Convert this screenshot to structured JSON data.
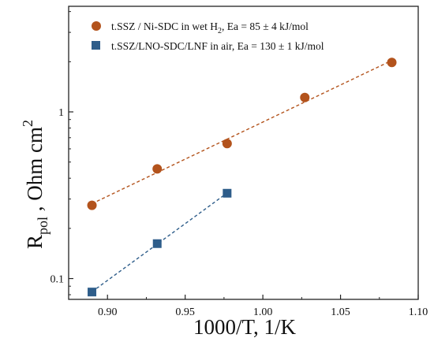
{
  "chart_data": {
    "type": "scatter",
    "x_axis": {
      "label": "1000/T, 1/K",
      "range": [
        0.875,
        1.1
      ],
      "scale": "linear",
      "ticks": [
        0.9,
        0.95,
        1.0,
        1.05,
        1.1
      ],
      "tick_labels": [
        "0.90",
        "0.95",
        "1.00",
        "1.05",
        "1.10"
      ]
    },
    "y_axis": {
      "label_main": "R",
      "label_sub": "pol",
      "label_rest": " , Ohm cm",
      "label_sup": "2",
      "range": [
        0.075,
        4.3
      ],
      "scale": "log",
      "ticks": [
        0.1,
        1
      ],
      "tick_labels": [
        "0.1",
        "1"
      ]
    },
    "legend": {
      "position": "top-left",
      "entries": [
        {
          "marker": "circle",
          "text": "t.SSZ / Ni-SDC in wet H",
          "sub": "2",
          "text_tail": ", Ea = 85 ± 4 kJ/mol"
        },
        {
          "marker": "square",
          "text": "t.SSZ/LNO-SDC/LNF in air, Ea = 130 ± 1 kJ/mol"
        }
      ]
    },
    "series": [
      {
        "marker": "circle",
        "color": "#b3531c",
        "fit_line": true,
        "points": [
          {
            "x": 0.89,
            "y": 0.275
          },
          {
            "x": 0.932,
            "y": 0.455
          },
          {
            "x": 0.977,
            "y": 0.645
          },
          {
            "x": 1.027,
            "y": 1.22
          },
          {
            "x": 1.083,
            "y": 1.98
          }
        ]
      },
      {
        "marker": "square",
        "color": "#2e5d8a",
        "fit_line": true,
        "points": [
          {
            "x": 0.89,
            "y": 0.083
          },
          {
            "x": 0.932,
            "y": 0.162
          },
          {
            "x": 0.977,
            "y": 0.325
          }
        ]
      }
    ],
    "grid": false
  }
}
